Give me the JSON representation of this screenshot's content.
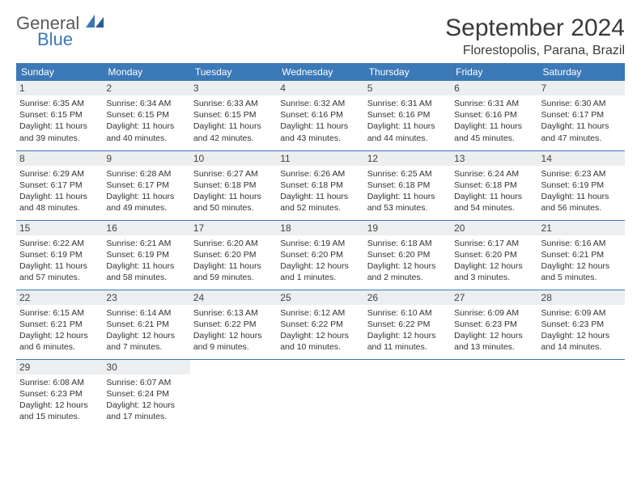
{
  "logo": {
    "text1": "General",
    "text2": "Blue"
  },
  "title": "September 2024",
  "location": "Florestopolis, Parana, Brazil",
  "colors": {
    "header_bg": "#3b79b7",
    "header_text": "#ffffff",
    "daynum_bg": "#eceef0",
    "row_border": "#3b79b7",
    "logo_gray": "#595959",
    "logo_blue": "#3b79b7",
    "body_text": "#333333"
  },
  "weekdays": [
    "Sunday",
    "Monday",
    "Tuesday",
    "Wednesday",
    "Thursday",
    "Friday",
    "Saturday"
  ],
  "weeks": [
    [
      {
        "n": "1",
        "sr": "6:35 AM",
        "ss": "6:15 PM",
        "dh": "11",
        "dm": "39"
      },
      {
        "n": "2",
        "sr": "6:34 AM",
        "ss": "6:15 PM",
        "dh": "11",
        "dm": "40"
      },
      {
        "n": "3",
        "sr": "6:33 AM",
        "ss": "6:15 PM",
        "dh": "11",
        "dm": "42"
      },
      {
        "n": "4",
        "sr": "6:32 AM",
        "ss": "6:16 PM",
        "dh": "11",
        "dm": "43"
      },
      {
        "n": "5",
        "sr": "6:31 AM",
        "ss": "6:16 PM",
        "dh": "11",
        "dm": "44"
      },
      {
        "n": "6",
        "sr": "6:31 AM",
        "ss": "6:16 PM",
        "dh": "11",
        "dm": "45"
      },
      {
        "n": "7",
        "sr": "6:30 AM",
        "ss": "6:17 PM",
        "dh": "11",
        "dm": "47"
      }
    ],
    [
      {
        "n": "8",
        "sr": "6:29 AM",
        "ss": "6:17 PM",
        "dh": "11",
        "dm": "48"
      },
      {
        "n": "9",
        "sr": "6:28 AM",
        "ss": "6:17 PM",
        "dh": "11",
        "dm": "49"
      },
      {
        "n": "10",
        "sr": "6:27 AM",
        "ss": "6:18 PM",
        "dh": "11",
        "dm": "50"
      },
      {
        "n": "11",
        "sr": "6:26 AM",
        "ss": "6:18 PM",
        "dh": "11",
        "dm": "52"
      },
      {
        "n": "12",
        "sr": "6:25 AM",
        "ss": "6:18 PM",
        "dh": "11",
        "dm": "53"
      },
      {
        "n": "13",
        "sr": "6:24 AM",
        "ss": "6:18 PM",
        "dh": "11",
        "dm": "54"
      },
      {
        "n": "14",
        "sr": "6:23 AM",
        "ss": "6:19 PM",
        "dh": "11",
        "dm": "56"
      }
    ],
    [
      {
        "n": "15",
        "sr": "6:22 AM",
        "ss": "6:19 PM",
        "dh": "11",
        "dm": "57"
      },
      {
        "n": "16",
        "sr": "6:21 AM",
        "ss": "6:19 PM",
        "dh": "11",
        "dm": "58"
      },
      {
        "n": "17",
        "sr": "6:20 AM",
        "ss": "6:20 PM",
        "dh": "11",
        "dm": "59"
      },
      {
        "n": "18",
        "sr": "6:19 AM",
        "ss": "6:20 PM",
        "dh": "12",
        "dm": "1"
      },
      {
        "n": "19",
        "sr": "6:18 AM",
        "ss": "6:20 PM",
        "dh": "12",
        "dm": "2"
      },
      {
        "n": "20",
        "sr": "6:17 AM",
        "ss": "6:20 PM",
        "dh": "12",
        "dm": "3"
      },
      {
        "n": "21",
        "sr": "6:16 AM",
        "ss": "6:21 PM",
        "dh": "12",
        "dm": "5"
      }
    ],
    [
      {
        "n": "22",
        "sr": "6:15 AM",
        "ss": "6:21 PM",
        "dh": "12",
        "dm": "6"
      },
      {
        "n": "23",
        "sr": "6:14 AM",
        "ss": "6:21 PM",
        "dh": "12",
        "dm": "7"
      },
      {
        "n": "24",
        "sr": "6:13 AM",
        "ss": "6:22 PM",
        "dh": "12",
        "dm": "9"
      },
      {
        "n": "25",
        "sr": "6:12 AM",
        "ss": "6:22 PM",
        "dh": "12",
        "dm": "10"
      },
      {
        "n": "26",
        "sr": "6:10 AM",
        "ss": "6:22 PM",
        "dh": "12",
        "dm": "11"
      },
      {
        "n": "27",
        "sr": "6:09 AM",
        "ss": "6:23 PM",
        "dh": "12",
        "dm": "13"
      },
      {
        "n": "28",
        "sr": "6:09 AM",
        "ss": "6:23 PM",
        "dh": "12",
        "dm": "14"
      }
    ],
    [
      {
        "n": "29",
        "sr": "6:08 AM",
        "ss": "6:23 PM",
        "dh": "12",
        "dm": "15"
      },
      {
        "n": "30",
        "sr": "6:07 AM",
        "ss": "6:24 PM",
        "dh": "12",
        "dm": "17"
      },
      null,
      null,
      null,
      null,
      null
    ]
  ],
  "labels": {
    "sunrise": "Sunrise:",
    "sunset": "Sunset:",
    "daylight": "Daylight:",
    "hours": "hours",
    "and": "and",
    "minutes": "minutes."
  }
}
